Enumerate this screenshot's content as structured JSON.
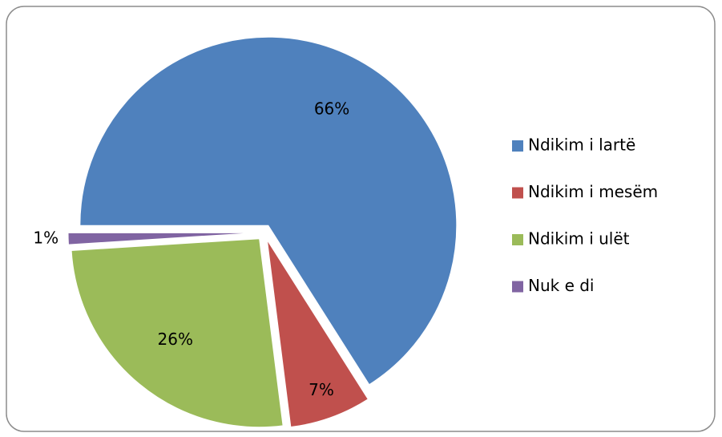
{
  "chart_data": {
    "type": "pie",
    "categories": [
      "Ndikim i lartë",
      "Ndikim i mesëm",
      "Ndikim i ulët",
      "Nuk e di"
    ],
    "values": [
      66,
      7,
      26,
      1
    ],
    "value_labels": [
      "66%",
      "7%",
      "26%",
      "1%"
    ],
    "colors": [
      "#4f81bd",
      "#c0504d",
      "#9bbb59",
      "#8064a2"
    ],
    "legend": "right"
  }
}
